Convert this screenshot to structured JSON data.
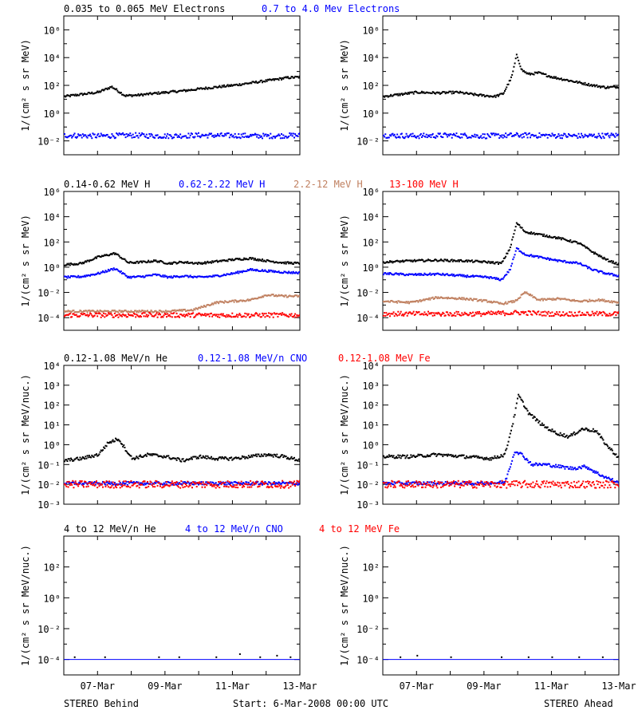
{
  "colors": {
    "black": "#000000",
    "blue": "#0000ff",
    "tan": "#c08060",
    "red": "#ff0000"
  },
  "chart_data": [
    {
      "type": "scatter",
      "panel": "electrons",
      "side": "behind",
      "ylabel": "1/(cm² s sr MeV)",
      "yscale": "log",
      "ylim_exp": [
        -3,
        7
      ],
      "ytick_exponents": [
        -2,
        0,
        2,
        4,
        6
      ],
      "xticks": [
        "07-Mar",
        "09-Mar",
        "11-Mar",
        "13-Mar"
      ],
      "xlim_days": [
        0,
        7
      ],
      "series": [
        {
          "name": "0.035 to 0.065 MeV Electrons",
          "color": "black",
          "x": [
            0,
            0.5,
            1.0,
            1.4,
            1.8,
            2.2,
            2.8,
            3.5,
            4.2,
            5.0,
            5.6,
            6.2,
            6.6,
            7.0
          ],
          "y_exp": [
            1.2,
            1.35,
            1.5,
            1.9,
            1.25,
            1.3,
            1.45,
            1.6,
            1.8,
            2.0,
            2.2,
            2.4,
            2.55,
            2.6
          ]
        },
        {
          "name": "0.7 to 4.0 Mev Electrons",
          "color": "blue",
          "x": [
            0,
            1,
            2,
            3,
            4,
            5,
            6,
            7
          ],
          "y_exp": [
            -1.6,
            -1.65,
            -1.6,
            -1.65,
            -1.6,
            -1.62,
            -1.65,
            -1.6
          ]
        }
      ]
    },
    {
      "type": "scatter",
      "panel": "electrons",
      "side": "ahead",
      "ylabel": "1/(cm² s sr MeV)",
      "yscale": "log",
      "ylim_exp": [
        -3,
        7
      ],
      "ytick_exponents": [
        -2,
        0,
        2,
        4,
        6
      ],
      "xticks": [
        "07-Mar",
        "09-Mar",
        "11-Mar",
        "13-Mar"
      ],
      "xlim_days": [
        0,
        7
      ],
      "series": [
        {
          "name": "0.035 to 0.065 MeV Electrons",
          "color": "black",
          "x": [
            0,
            0.5,
            1.0,
            1.6,
            2.2,
            2.8,
            3.3,
            3.55,
            3.8,
            3.95,
            4.1,
            4.3,
            4.6,
            5.0,
            5.4,
            5.8,
            6.2,
            6.6,
            7.0
          ],
          "y_exp": [
            1.2,
            1.35,
            1.5,
            1.45,
            1.5,
            1.3,
            1.2,
            1.4,
            2.6,
            4.2,
            3.1,
            2.8,
            2.9,
            2.6,
            2.4,
            2.2,
            2.0,
            1.85,
            1.9
          ]
        },
        {
          "name": "0.7 to 4.0 Mev Electrons",
          "color": "blue",
          "x": [
            0,
            1,
            2,
            3,
            4,
            5,
            6,
            7
          ],
          "y_exp": [
            -1.6,
            -1.65,
            -1.6,
            -1.65,
            -1.6,
            -1.62,
            -1.65,
            -1.6
          ]
        }
      ]
    },
    {
      "type": "scatter",
      "panel": "protons",
      "side": "behind",
      "ylabel": "1/(cm² s sr MeV)",
      "yscale": "log",
      "ylim_exp": [
        -5,
        6
      ],
      "ytick_exponents": [
        -4,
        -2,
        0,
        2,
        4,
        6
      ],
      "xticks": [
        "07-Mar",
        "09-Mar",
        "11-Mar",
        "13-Mar"
      ],
      "xlim_days": [
        0,
        7
      ],
      "series": [
        {
          "name": "0.14-0.62 MeV H",
          "color": "black",
          "x": [
            0,
            0.5,
            1.0,
            1.5,
            1.9,
            2.3,
            2.7,
            3.1,
            3.5,
            4.0,
            4.5,
            5.0,
            5.5,
            6.0,
            6.5,
            7.0
          ],
          "y_exp": [
            0.2,
            0.3,
            0.8,
            1.1,
            0.35,
            0.4,
            0.5,
            0.3,
            0.4,
            0.3,
            0.45,
            0.6,
            0.7,
            0.5,
            0.35,
            0.3
          ]
        },
        {
          "name": "0.62-2.22 MeV H",
          "color": "blue",
          "x": [
            0,
            0.5,
            1.0,
            1.5,
            1.9,
            2.3,
            2.7,
            3.1,
            3.5,
            4.0,
            4.5,
            5.0,
            5.5,
            6.0,
            6.5,
            7.0
          ],
          "y_exp": [
            -0.8,
            -0.75,
            -0.5,
            -0.1,
            -0.8,
            -0.75,
            -0.6,
            -0.8,
            -0.7,
            -0.8,
            -0.7,
            -0.5,
            -0.2,
            -0.3,
            -0.4,
            -0.45
          ]
        },
        {
          "name": "2.2-12 MeV H",
          "color": "tan",
          "x": [
            0,
            1,
            2,
            3,
            3.8,
            4.5,
            5.0,
            5.5,
            6.0,
            6.5,
            7.0
          ],
          "y_exp": [
            -3.5,
            -3.5,
            -3.5,
            -3.5,
            -3.4,
            -2.8,
            -2.7,
            -2.6,
            -2.2,
            -2.3,
            -2.3
          ]
        },
        {
          "name": "13-100 MeV H",
          "color": "red",
          "x": [
            0,
            1,
            2,
            3,
            4,
            5,
            6,
            7
          ],
          "y_exp": [
            -3.8,
            -3.8,
            -3.8,
            -3.8,
            -3.8,
            -3.8,
            -3.8,
            -3.8
          ]
        }
      ]
    },
    {
      "type": "scatter",
      "panel": "protons",
      "side": "ahead",
      "ylabel": "1/(cm² s sr MeV)",
      "yscale": "log",
      "ylim_exp": [
        -5,
        6
      ],
      "ytick_exponents": [
        -4,
        -2,
        0,
        2,
        4,
        6
      ],
      "xticks": [
        "07-Mar",
        "09-Mar",
        "11-Mar",
        "13-Mar"
      ],
      "xlim_days": [
        0,
        7
      ],
      "series": [
        {
          "name": "0.14-0.62 MeV H",
          "color": "black",
          "x": [
            0,
            0.8,
            1.6,
            2.4,
            3.1,
            3.5,
            3.75,
            3.95,
            4.2,
            4.6,
            5.2,
            5.8,
            6.2,
            6.6,
            7.0
          ],
          "y_exp": [
            0.4,
            0.5,
            0.55,
            0.5,
            0.4,
            0.3,
            1.5,
            3.5,
            2.8,
            2.6,
            2.3,
            1.9,
            1.2,
            0.6,
            0.2
          ]
        },
        {
          "name": "0.62-2.22 MeV H",
          "color": "blue",
          "x": [
            0,
            0.8,
            1.6,
            2.4,
            3.1,
            3.5,
            3.75,
            3.95,
            4.2,
            4.6,
            5.2,
            5.8,
            6.2,
            6.6,
            7.0
          ],
          "y_exp": [
            -0.5,
            -0.6,
            -0.55,
            -0.7,
            -0.8,
            -1.0,
            -0.2,
            1.5,
            1.0,
            0.8,
            0.5,
            0.3,
            -0.2,
            -0.5,
            -0.7
          ]
        },
        {
          "name": "2.2-12 MeV H",
          "color": "tan",
          "x": [
            0,
            0.8,
            1.6,
            2.4,
            3.1,
            3.5,
            3.9,
            4.2,
            4.6,
            5.2,
            5.8,
            6.4,
            7.0
          ],
          "y_exp": [
            -2.7,
            -2.8,
            -2.4,
            -2.5,
            -2.7,
            -2.9,
            -2.7,
            -2.0,
            -2.6,
            -2.5,
            -2.7,
            -2.6,
            -2.8
          ]
        },
        {
          "name": "13-100 MeV H",
          "color": "red",
          "x": [
            0,
            1,
            2,
            3,
            4,
            5,
            6,
            7
          ],
          "y_exp": [
            -3.7,
            -3.7,
            -3.7,
            -3.7,
            -3.6,
            -3.7,
            -3.7,
            -3.7
          ]
        }
      ]
    },
    {
      "type": "scatter",
      "panel": "heavy-low",
      "side": "behind",
      "ylabel": "1/(cm² s sr MeV/nuc.)",
      "yscale": "log",
      "ylim_exp": [
        -3,
        4
      ],
      "ytick_exponents": [
        -3,
        -2,
        -1,
        0,
        1,
        2,
        3,
        4
      ],
      "xticks": [
        "07-Mar",
        "09-Mar",
        "11-Mar",
        "13-Mar"
      ],
      "xlim_days": [
        0,
        7
      ],
      "series": [
        {
          "name": "0.12-1.08 MeV/n He",
          "color": "black",
          "x": [
            0,
            0.5,
            1.0,
            1.3,
            1.6,
            2.0,
            2.5,
            3.0,
            3.5,
            4.0,
            4.5,
            5.0,
            5.5,
            6.0,
            6.5,
            7.0
          ],
          "y_exp": [
            -0.8,
            -0.7,
            -0.5,
            0.1,
            0.3,
            -0.7,
            -0.5,
            -0.6,
            -0.8,
            -0.6,
            -0.7,
            -0.7,
            -0.6,
            -0.5,
            -0.6,
            -0.8
          ]
        },
        {
          "name": "0.12-1.08 MeV/n CNO",
          "color": "blue",
          "x": [
            0,
            1,
            2,
            3,
            4,
            5,
            6,
            7
          ],
          "y_exp": [
            -1.95,
            -1.95,
            -1.95,
            -1.95,
            -1.95,
            -1.95,
            -1.95,
            -1.95
          ]
        },
        {
          "name": "0.12-1.08 MeV Fe",
          "color": "red",
          "x": [
            0,
            1,
            2,
            3,
            4,
            5,
            6,
            7
          ],
          "y_exp": [
            -2.0,
            -2.0,
            -2.0,
            -2.0,
            -2.0,
            -2.0,
            -2.0,
            -2.0
          ]
        }
      ]
    },
    {
      "type": "scatter",
      "panel": "heavy-low",
      "side": "ahead",
      "ylabel": "1/(cm² s sr MeV/nuc.)",
      "yscale": "log",
      "ylim_exp": [
        -3,
        4
      ],
      "ytick_exponents": [
        -3,
        -2,
        -1,
        0,
        1,
        2,
        3,
        4
      ],
      "xticks": [
        "07-Mar",
        "09-Mar",
        "11-Mar",
        "13-Mar"
      ],
      "xlim_days": [
        0,
        7
      ],
      "series": [
        {
          "name": "0.12-1.08 MeV/n He",
          "color": "black",
          "x": [
            0,
            0.8,
            1.6,
            2.4,
            3.2,
            3.6,
            3.85,
            4.0,
            4.3,
            4.7,
            5.1,
            5.5,
            5.9,
            6.3,
            6.6,
            7.0
          ],
          "y_exp": [
            -0.6,
            -0.6,
            -0.5,
            -0.6,
            -0.7,
            -0.5,
            1.2,
            2.5,
            1.6,
            1.0,
            0.6,
            0.4,
            0.8,
            0.7,
            0.0,
            -0.7
          ]
        },
        {
          "name": "0.12-1.08 MeV/n CNO",
          "color": "blue",
          "x": [
            0,
            1,
            2,
            3,
            3.6,
            3.9,
            4.1,
            4.4,
            4.8,
            5.2,
            5.6,
            6.0,
            6.4,
            7.0
          ],
          "y_exp": [
            -1.95,
            -1.95,
            -1.95,
            -1.95,
            -1.9,
            -0.3,
            -0.5,
            -1.0,
            -1.0,
            -1.1,
            -1.2,
            -1.1,
            -1.5,
            -1.95
          ]
        },
        {
          "name": "0.12-1.08 MeV Fe",
          "color": "red",
          "x": [
            0,
            1,
            2,
            3,
            4,
            5,
            6,
            7
          ],
          "y_exp": [
            -2.0,
            -2.0,
            -2.0,
            -2.0,
            -2.0,
            -2.0,
            -2.0,
            -2.0
          ]
        }
      ]
    },
    {
      "type": "scatter",
      "panel": "heavy-high",
      "side": "behind",
      "ylabel": "1/(cm² s sr MeV/nuc.)",
      "yscale": "log",
      "ylim_exp": [
        -5,
        4
      ],
      "ytick_exponents": [
        -4,
        -2,
        0,
        2
      ],
      "xticks": [
        "07-Mar",
        "09-Mar",
        "11-Mar",
        "13-Mar"
      ],
      "xlim_days": [
        0,
        7
      ],
      "series": [
        {
          "name": "4 to 12 MeV/n He",
          "color": "black",
          "x": [
            0.3,
            1.2,
            2.8,
            3.4,
            4.5,
            5.2,
            5.8,
            6.3,
            6.7
          ],
          "y_exp": [
            -3.8,
            -3.8,
            -3.8,
            -3.8,
            -3.8,
            -3.6,
            -3.8,
            -3.7,
            -3.8
          ]
        },
        {
          "name": "4 to 12 MeV/n CNO",
          "color": "blue",
          "x": [
            0,
            7
          ],
          "y_exp": [
            -4.0,
            -4.0
          ]
        },
        {
          "name": "4 to 12 MeV Fe",
          "color": "red",
          "x": [],
          "y_exp": []
        }
      ]
    },
    {
      "type": "scatter",
      "panel": "heavy-high",
      "side": "ahead",
      "ylabel": "1/(cm² s sr MeV/nuc.)",
      "yscale": "log",
      "ylim_exp": [
        -5,
        4
      ],
      "ytick_exponents": [
        -4,
        -2,
        0,
        2
      ],
      "xticks": [
        "07-Mar",
        "09-Mar",
        "11-Mar",
        "13-Mar"
      ],
      "xlim_days": [
        0,
        7
      ],
      "series": [
        {
          "name": "4 to 12 MeV/n He",
          "color": "black",
          "x": [
            0.5,
            1.0,
            2.0,
            3.5,
            4.3,
            5.0,
            5.8,
            6.5
          ],
          "y_exp": [
            -3.8,
            -3.7,
            -3.8,
            -3.8,
            -3.8,
            -3.8,
            -3.8,
            -3.8
          ]
        },
        {
          "name": "4 to 12 MeV/n CNO",
          "color": "blue",
          "x": [
            0,
            7
          ],
          "y_exp": [
            -4.0,
            -4.0
          ]
        },
        {
          "name": "4 to 12 MeV Fe",
          "color": "red",
          "x": [],
          "y_exp": []
        }
      ]
    }
  ],
  "headers": [
    {
      "row": 0,
      "items": [
        {
          "text": "0.035 to 0.065 MeV Electrons",
          "color": "black"
        },
        {
          "text": "0.7 to 4.0 Mev Electrons",
          "color": "blue"
        }
      ]
    },
    {
      "row": 1,
      "items": [
        {
          "text": "0.14-0.62 MeV H",
          "color": "black"
        },
        {
          "text": "0.62-2.22 MeV H",
          "color": "blue"
        },
        {
          "text": "2.2-12 MeV H",
          "color": "tan"
        },
        {
          "text": "13-100 MeV H",
          "color": "red"
        }
      ]
    },
    {
      "row": 2,
      "items": [
        {
          "text": "0.12-1.08 MeV/n He",
          "color": "black"
        },
        {
          "text": "0.12-1.08 MeV/n CNO",
          "color": "blue"
        },
        {
          "text": "0.12-1.08 MeV Fe",
          "color": "red"
        }
      ]
    },
    {
      "row": 3,
      "items": [
        {
          "text": "4 to 12 MeV/n He",
          "color": "black"
        },
        {
          "text": "4 to 12 MeV/n CNO",
          "color": "blue"
        },
        {
          "text": "4 to 12 MeV Fe",
          "color": "red"
        }
      ]
    }
  ],
  "footer": {
    "left": "STEREO Behind",
    "center": "Start:  6-Mar-2008 00:00 UTC",
    "right": "STEREO Ahead"
  }
}
